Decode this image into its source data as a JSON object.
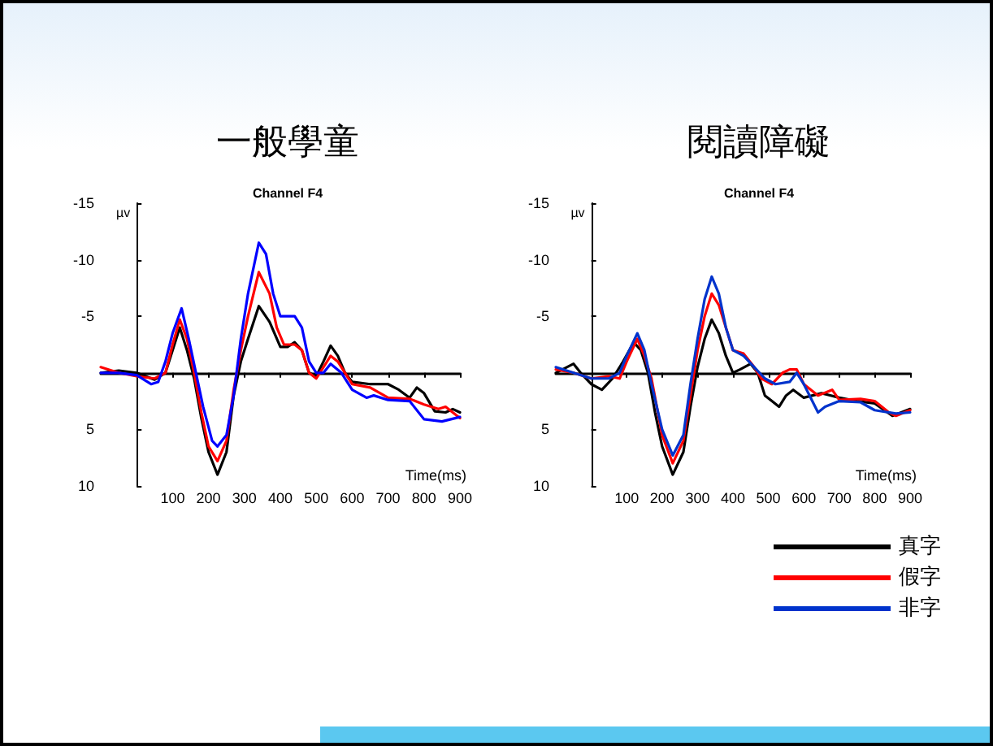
{
  "chart_data": [
    {
      "type": "line",
      "title": "一般學童",
      "subtitle": "Channel F4",
      "xlabel": "Time(ms)",
      "ylabel": "µv",
      "xlim": [
        -100,
        900
      ],
      "xticks": [
        100,
        200,
        300,
        400,
        500,
        600,
        700,
        800,
        900
      ],
      "ylim": [
        10,
        -15
      ],
      "yticks": [
        -15,
        -10,
        -5,
        5,
        10
      ],
      "marker": "none",
      "line_style": "solid",
      "legend": false,
      "series": [
        {
          "color": "#000000",
          "x": [
            -100,
            -50,
            0,
            50,
            80,
            100,
            120,
            140,
            160,
            180,
            200,
            225,
            250,
            270,
            290,
            310,
            340,
            370,
            400,
            420,
            440,
            460,
            480,
            500,
            520,
            540,
            560,
            580,
            600,
            650,
            700,
            730,
            760,
            780,
            800,
            830,
            860,
            880,
            900
          ],
          "values": [
            0,
            -0.2,
            0,
            0.6,
            0,
            -2,
            -4,
            -2,
            0.5,
            4,
            7,
            9,
            7,
            2,
            -1,
            -3,
            -5.9,
            -4.5,
            -2.3,
            -2.3,
            -2.7,
            -2,
            0,
            0.3,
            -1,
            -2.4,
            -1.5,
            0,
            0.8,
            1,
            1,
            1.5,
            2.2,
            1.3,
            1.8,
            3.4,
            3.5,
            3.2,
            3.5
          ]
        },
        {
          "color": "#ff0000",
          "x": [
            -100,
            -50,
            0,
            50,
            80,
            100,
            120,
            140,
            160,
            180,
            200,
            225,
            250,
            270,
            290,
            310,
            340,
            370,
            390,
            410,
            440,
            460,
            480,
            500,
            520,
            540,
            560,
            580,
            600,
            650,
            700,
            760,
            800,
            840,
            860,
            880,
            900
          ],
          "values": [
            -0.5,
            0,
            0.3,
            0.5,
            0,
            -2.5,
            -4.7,
            -3,
            0,
            3.5,
            6.5,
            7.8,
            6,
            1.5,
            -2,
            -5,
            -8.9,
            -7,
            -4,
            -2.5,
            -2.5,
            -2,
            0,
            0.5,
            -0.5,
            -1.5,
            -1,
            0,
            1,
            1.3,
            2.2,
            2.3,
            2.8,
            3.2,
            3,
            3.5,
            4
          ]
        },
        {
          "color": "#0000ff",
          "x": [
            -100,
            -50,
            0,
            40,
            60,
            80,
            100,
            125,
            145,
            165,
            185,
            210,
            225,
            250,
            270,
            290,
            310,
            340,
            360,
            380,
            400,
            420,
            440,
            460,
            480,
            500,
            520,
            540,
            570,
            600,
            640,
            660,
            700,
            760,
            800,
            850,
            900
          ],
          "values": [
            0,
            0,
            0.2,
            1,
            0.8,
            -1,
            -3.5,
            -5.7,
            -3,
            0,
            3,
            6,
            6.5,
            5.5,
            2,
            -3,
            -7,
            -11.5,
            -10.5,
            -7,
            -5,
            -5,
            -5,
            -4,
            -1,
            0,
            0,
            -0.8,
            0,
            1.5,
            2.2,
            2,
            2.4,
            2.5,
            4.1,
            4.3,
            3.9
          ]
        }
      ]
    },
    {
      "type": "line",
      "title": "閱讀障礙",
      "subtitle": "Channel F4",
      "xlabel": "Time(ms)",
      "ylabel": "µv",
      "xlim": [
        -100,
        900
      ],
      "xticks": [
        100,
        200,
        300,
        400,
        500,
        600,
        700,
        800,
        900
      ],
      "ylim": [
        10,
        -15
      ],
      "yticks": [
        -15,
        -10,
        -5,
        5,
        10
      ],
      "marker": "none",
      "line_style": "solid",
      "legend": "bottom right",
      "series": [
        {
          "name": "真字",
          "color": "#000000",
          "x": [
            -100,
            -50,
            -30,
            0,
            30,
            60,
            90,
            120,
            140,
            160,
            180,
            200,
            230,
            260,
            280,
            300,
            320,
            340,
            360,
            380,
            400,
            420,
            450,
            470,
            490,
            510,
            530,
            550,
            570,
            600,
            650,
            700,
            750,
            800,
            850,
            900
          ],
          "values": [
            0,
            -0.8,
            0,
            1,
            1.5,
            0.5,
            -1,
            -2.7,
            -2,
            0,
            3.5,
            6.5,
            9,
            7,
            3,
            -0.5,
            -3,
            -4.7,
            -3.5,
            -1.5,
            0,
            -0.3,
            -0.8,
            0,
            2,
            2.5,
            3,
            2,
            1.5,
            2.2,
            1.8,
            2.2,
            2.5,
            2.7,
            3.8,
            3.2
          ]
        },
        {
          "name": "假字",
          "color": "#ff0000",
          "x": [
            -100,
            -50,
            0,
            50,
            80,
            100,
            130,
            150,
            170,
            200,
            230,
            260,
            280,
            300,
            320,
            340,
            360,
            380,
            400,
            430,
            460,
            480,
            510,
            540,
            560,
            580,
            600,
            640,
            680,
            700,
            760,
            800,
            840,
            860,
            900
          ],
          "values": [
            -0.3,
            0,
            0.5,
            0.3,
            0.5,
            -1,
            -3,
            -1.5,
            0.5,
            5.5,
            8,
            6,
            2,
            -2,
            -5,
            -7,
            -6,
            -4,
            -2,
            -1.7,
            -0.5,
            0.5,
            1,
            0,
            -0.3,
            -0.3,
            1,
            2,
            1.5,
            2.4,
            2.3,
            2.5,
            3.5,
            3.8,
            3.3
          ]
        },
        {
          "name": "非字",
          "color": "#0033cc",
          "x": [
            -100,
            -50,
            0,
            50,
            80,
            100,
            130,
            150,
            170,
            200,
            230,
            260,
            280,
            300,
            320,
            340,
            360,
            380,
            400,
            430,
            460,
            490,
            520,
            560,
            580,
            600,
            640,
            660,
            700,
            760,
            800,
            860,
            900
          ],
          "values": [
            -0.5,
            0,
            0.5,
            0.5,
            0,
            -1.5,
            -3.5,
            -2,
            1,
            5,
            7.3,
            5.5,
            1,
            -3,
            -6.5,
            -8.5,
            -7,
            -4,
            -2,
            -1.5,
            -0.5,
            0.5,
            1,
            0.8,
            0,
            1,
            3.5,
            3,
            2.5,
            2.6,
            3.3,
            3.6,
            3.5
          ]
        }
      ]
    }
  ]
}
